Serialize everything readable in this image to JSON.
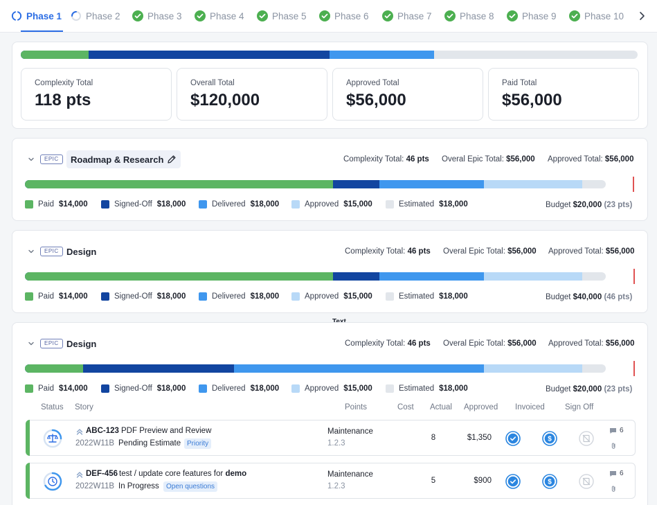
{
  "tabs": [
    {
      "label": "Phase 1",
      "state": "active"
    },
    {
      "label": "Phase 2",
      "state": "in-progress"
    },
    {
      "label": "Phase 3",
      "state": "done"
    },
    {
      "label": "Phase 4",
      "state": "done"
    },
    {
      "label": "Phase 5",
      "state": "done"
    },
    {
      "label": "Phase 6",
      "state": "done"
    },
    {
      "label": "Phase 7",
      "state": "done"
    },
    {
      "label": "Phase 8",
      "state": "done"
    },
    {
      "label": "Phase 9",
      "state": "done"
    },
    {
      "label": "Phase 10",
      "state": "done"
    }
  ],
  "colors": {
    "paid": "#5cb563",
    "signed_off": "#1245a0",
    "delivered": "#3f97ee",
    "approved": "#b8d9f7",
    "estimated": "#e2e6eb",
    "accent": "#2b6de4",
    "budget_line": "#e05252"
  },
  "summary": {
    "progress": {
      "paid": 0.11,
      "signed_off": 0.5,
      "delivered": 0.67
    },
    "stats": [
      {
        "label": "Complexity Total",
        "value": "118 pts"
      },
      {
        "label": "Overall Total",
        "value": "$120,000"
      },
      {
        "label": "Approved Total",
        "value": "$56,000"
      },
      {
        "label": "Paid Total",
        "value": "$56,000"
      }
    ]
  },
  "meta_labels": {
    "complexity": "Complexity Total:",
    "epic_total": "Overal Epic Total:",
    "approved": "Approved Total:",
    "budget": "Budget"
  },
  "legend_labels": [
    "Paid",
    "Signed-Off",
    "Delivered",
    "Approved",
    "Estimated"
  ],
  "epics": [
    {
      "badge": "EPIC",
      "title": "Roadmap & Research",
      "complexity": "46 pts",
      "epic_total": "$56,000",
      "approved_total": "$56,000",
      "amounts": [
        "$14,000",
        "$18,000",
        "$18,000",
        "$15,000",
        "$18,000"
      ],
      "budget": "$20,000",
      "budget_pts": "(23 pts)",
      "progress": {
        "paid": 0.53,
        "signed_off": 0.61,
        "delivered": 0.79,
        "approved": 0.96,
        "budget": 0.99
      }
    },
    {
      "badge": "EPIC",
      "title": "Design",
      "complexity": "46 pts",
      "epic_total": "$56,000",
      "approved_total": "$56,000",
      "amounts": [
        "$14,000",
        "$18,000",
        "$18,000",
        "$15,000",
        "$18,000"
      ],
      "budget": "$40,000",
      "budget_pts": "(46 pts)",
      "progress": {
        "paid": 0.53,
        "signed_off": 0.61,
        "delivered": 0.79,
        "approved": 0.96,
        "budget": 0.99
      }
    },
    {
      "badge": "EPIC",
      "title": "Design",
      "complexity": "46 pts",
      "epic_total": "$56,000",
      "approved_total": "$56,000",
      "amounts": [
        "$14,000",
        "$18,000",
        "$18,000",
        "$15,000",
        "$18,000"
      ],
      "budget": "$20,000",
      "budget_pts": "(23 pts)",
      "progress": {
        "paid": 0.1,
        "signed_off": 0.36,
        "delivered": 0.79,
        "approved": 0.96,
        "budget": 0.99
      }
    }
  ],
  "floating_text": "Text",
  "columns": [
    "Status",
    "Story",
    "Points",
    "Cost",
    "Actual",
    "Approved",
    "Invoiced",
    "Sign Off"
  ],
  "stories": [
    {
      "key": "ABC-123",
      "name": "PDF Preview and Review",
      "sprint": "2022W11B",
      "state": "Pending Estimate",
      "tag": "Priority",
      "category": "Maintenance",
      "version": "1.2.3",
      "actual": "8",
      "approved": "$1,350",
      "comments": "6",
      "status_icon": "scale-icon"
    },
    {
      "key": "DEF-456",
      "name": "test / update core features for",
      "name_bold": "demo",
      "sprint": "2022W11B",
      "state": "In Progress",
      "tag": "Open questions",
      "category": "Maintenance",
      "version": "1.2.3",
      "actual": "5",
      "approved": "$900",
      "comments": "6",
      "status_icon": "clock-progress-icon"
    }
  ]
}
